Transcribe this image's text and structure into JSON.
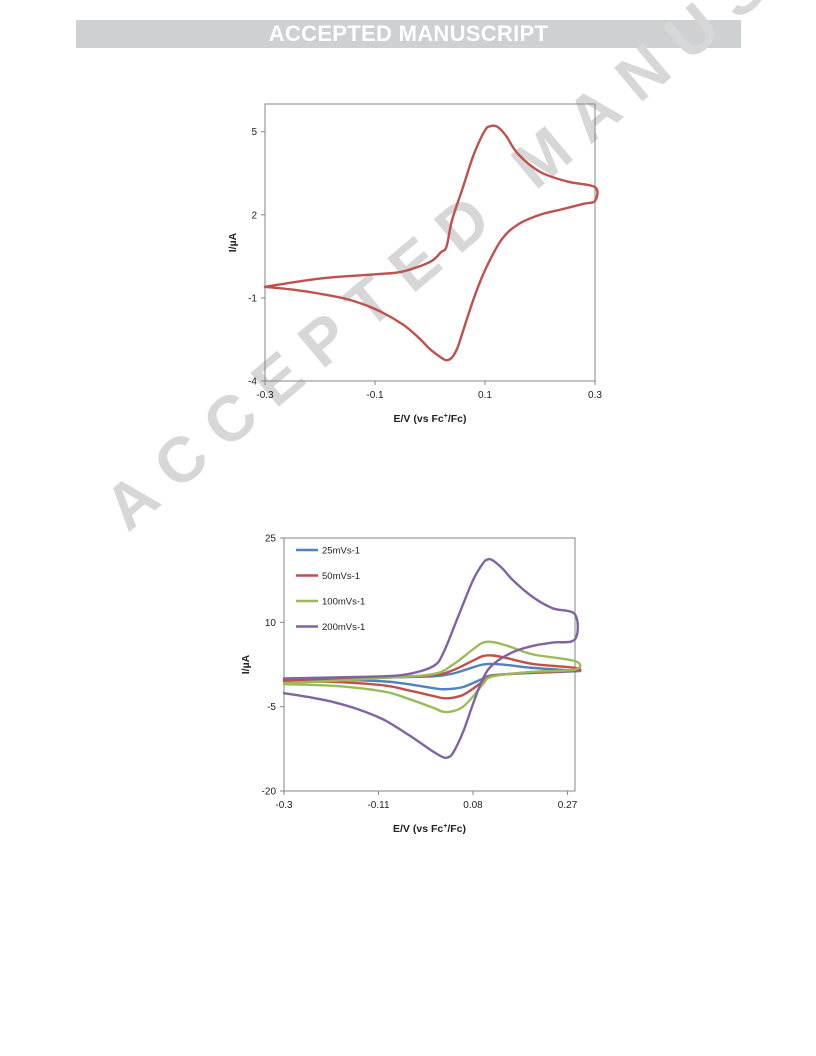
{
  "banner": {
    "text": "ACCEPTED MANUSCRIPT"
  },
  "watermark": {
    "text": "ACCEPTED MANUSCRIPT"
  },
  "colors": {
    "banner_bg": "#cfd0d2",
    "watermark": "#d7d7d7",
    "chart1_line": "#c0504d",
    "blue": "#4f81bd",
    "red": "#c0504d",
    "green": "#9bbb59",
    "purple": "#8064a2"
  },
  "chart_data": [
    {
      "type": "line",
      "title": "",
      "xlabel": "E/V (vs Fc",
      "xlabel_sup": "+",
      "xlabel_suffix": "/Fc)",
      "ylabel": "I/µA",
      "xlim": [
        -0.3,
        0.3
      ],
      "ylim": [
        -4,
        6
      ],
      "x_ticks": [
        -0.3,
        -0.1,
        0.1,
        0.3
      ],
      "x_tick_labels": [
        "-0.3",
        "-0.1",
        "0.1",
        "0.3"
      ],
      "y_ticks": [
        -4,
        -1,
        2,
        5
      ],
      "y_tick_labels": [
        "-4",
        "-1",
        "2",
        "5"
      ],
      "legend": false,
      "grid": false,
      "series": [
        {
          "color": "#c0504d",
          "x": [
            -0.3,
            -0.2,
            -0.1,
            -0.05,
            0.0,
            0.02,
            0.03,
            0.04,
            0.06,
            0.08,
            0.1,
            0.11,
            0.12,
            0.13,
            0.14,
            0.16,
            0.2,
            0.25,
            0.3,
            0.3,
            0.28,
            0.24,
            0.2,
            0.16,
            0.13,
            0.1,
            0.08,
            0.06,
            0.05,
            0.04,
            0.03,
            0.02,
            0.0,
            -0.02,
            -0.05,
            -0.1,
            -0.15,
            -0.2,
            -0.25,
            -0.3
          ],
          "y": [
            -0.6,
            -0.3,
            -0.15,
            -0.05,
            0.3,
            0.65,
            0.85,
            1.8,
            3.0,
            4.2,
            5.05,
            5.2,
            5.2,
            5.05,
            4.8,
            4.2,
            3.55,
            3.2,
            3.0,
            2.5,
            2.4,
            2.2,
            2.0,
            1.65,
            1.1,
            0.0,
            -1.0,
            -2.2,
            -2.8,
            -3.15,
            -3.25,
            -3.15,
            -2.85,
            -2.45,
            -1.95,
            -1.4,
            -1.05,
            -0.85,
            -0.7,
            -0.6
          ]
        }
      ]
    },
    {
      "type": "line",
      "title": "",
      "xlabel": "E/V (vs Fc",
      "xlabel_sup": "+",
      "xlabel_suffix": "/Fc)",
      "ylabel": "I/µA",
      "xlim": [
        -0.3,
        0.285
      ],
      "ylim": [
        -20,
        25
      ],
      "x_ticks": [
        -0.3,
        -0.11,
        0.08,
        0.27
      ],
      "x_tick_labels": [
        "-0.3",
        "-0.11",
        "0.08",
        "0.27"
      ],
      "y_ticks": [
        -20,
        -5,
        10,
        25
      ],
      "y_tick_labels": [
        "-20",
        "-5",
        "10",
        "25"
      ],
      "legend": true,
      "legend_position": "top-left",
      "grid": false,
      "series": [
        {
          "name": "25mVs-1",
          "color": "#4f81bd",
          "x": [
            -0.3,
            -0.2,
            -0.1,
            0.0,
            0.04,
            0.08,
            0.1,
            0.12,
            0.15,
            0.2,
            0.285,
            0.285,
            0.2,
            0.12,
            0.1,
            0.08,
            0.06,
            0.04,
            0.02,
            0.0,
            -0.05,
            -0.1,
            -0.2,
            -0.3
          ],
          "y": [
            0.0,
            0.1,
            0.2,
            0.4,
            0.9,
            2.0,
            2.5,
            2.6,
            2.4,
            1.9,
            1.4,
            1.3,
            1.0,
            0.6,
            0.0,
            -0.8,
            -1.5,
            -1.8,
            -1.9,
            -1.7,
            -1.0,
            -0.5,
            -0.2,
            -0.1
          ]
        },
        {
          "name": "50mVs-1",
          "color": "#c0504d",
          "x": [
            -0.3,
            -0.2,
            -0.1,
            0.0,
            0.04,
            0.08,
            0.1,
            0.12,
            0.15,
            0.2,
            0.285,
            0.285,
            0.2,
            0.12,
            0.1,
            0.08,
            0.06,
            0.04,
            0.02,
            0.0,
            -0.05,
            -0.1,
            -0.2,
            -0.3
          ],
          "y": [
            -0.2,
            0.0,
            0.2,
            0.6,
            1.5,
            3.2,
            4.0,
            4.1,
            3.6,
            2.6,
            1.9,
            1.4,
            1.1,
            0.5,
            -0.5,
            -1.8,
            -2.9,
            -3.4,
            -3.5,
            -3.1,
            -2.1,
            -1.2,
            -0.6,
            -0.5
          ]
        },
        {
          "name": "100mVs-1",
          "color": "#9bbb59",
          "x": [
            -0.3,
            -0.2,
            -0.1,
            0.0,
            0.04,
            0.08,
            0.1,
            0.12,
            0.15,
            0.2,
            0.285,
            0.285,
            0.2,
            0.12,
            0.1,
            0.08,
            0.06,
            0.04,
            0.02,
            0.0,
            -0.05,
            -0.1,
            -0.2,
            -0.3
          ],
          "y": [
            -0.8,
            -0.4,
            0.1,
            0.8,
            2.5,
            5.2,
            6.4,
            6.5,
            5.8,
            4.3,
            3.1,
            1.6,
            1.2,
            0.4,
            -1.0,
            -3.2,
            -5.0,
            -5.8,
            -5.9,
            -5.2,
            -3.6,
            -2.3,
            -1.3,
            -1.0
          ]
        },
        {
          "name": "200mVs-1",
          "color": "#8064a2",
          "x": [
            -0.3,
            -0.2,
            -0.1,
            -0.05,
            0.0,
            0.02,
            0.05,
            0.08,
            0.1,
            0.11,
            0.12,
            0.14,
            0.16,
            0.2,
            0.24,
            0.285,
            0.285,
            0.24,
            0.2,
            0.16,
            0.12,
            0.1,
            0.08,
            0.06,
            0.04,
            0.03,
            0.02,
            0.0,
            -0.02,
            -0.05,
            -0.1,
            -0.15,
            -0.2,
            -0.25,
            -0.3
          ],
          "y": [
            0.0,
            0.2,
            0.4,
            0.8,
            2.2,
            4.5,
            11.0,
            17.5,
            20.5,
            21.2,
            21.0,
            19.5,
            17.5,
            14.5,
            12.5,
            11.4,
            7.0,
            6.4,
            5.8,
            4.7,
            2.5,
            0.0,
            -4.5,
            -9.5,
            -13.2,
            -14.0,
            -14.0,
            -13.0,
            -11.8,
            -10.0,
            -7.3,
            -5.5,
            -4.2,
            -3.3,
            -2.6
          ]
        }
      ]
    }
  ]
}
